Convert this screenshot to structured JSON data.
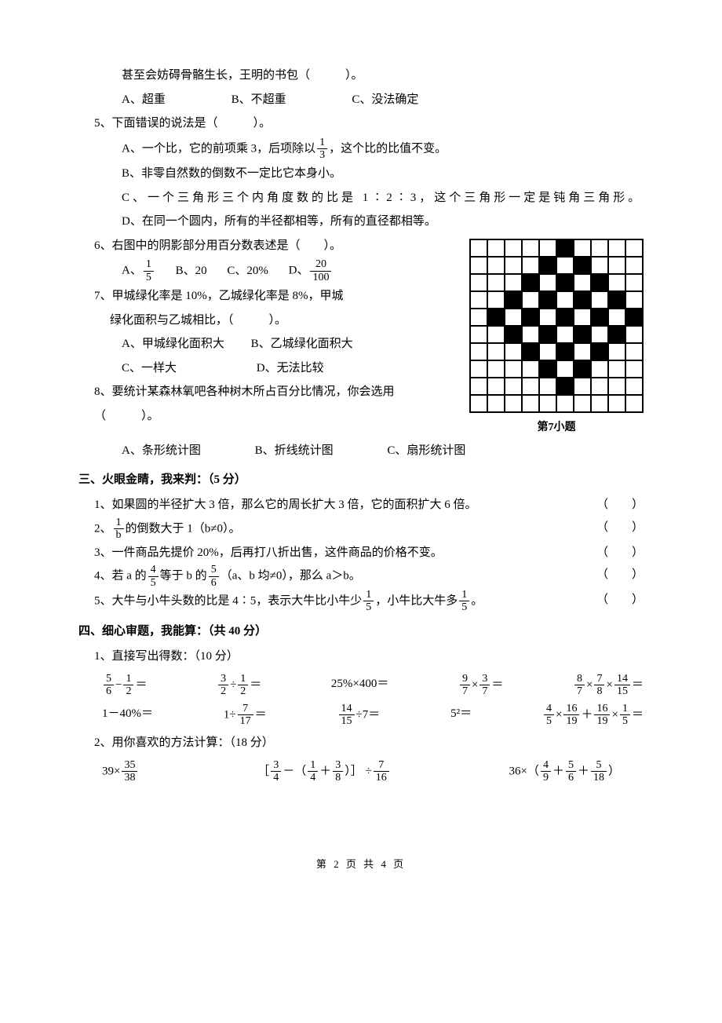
{
  "q4": {
    "stem": "甚至会妨碍骨骼生长，王明的书包（　　　）。",
    "a": "A、超重",
    "b": "B、不超重",
    "c": "C、没法确定"
  },
  "q5": {
    "stem": "5、下面错误的说法是（　　　）。",
    "a_pre": "A、一个比，它的前项乘 3，后项除以",
    "a_frac_num": "1",
    "a_frac_den": "3",
    "a_post": "，这个比的比值不变。",
    "b": "B、非零自然数的倒数不一定比它本身小。",
    "c": "C、一个三角形三个内角度数的比是 1∶2∶3，这个三角形一定是钝角三角形。",
    "d": "D、在同一个圆内，所有的半径都相等，所有的直径都相等。"
  },
  "q6": {
    "stem": "6、右图中的阴影部分用百分数表述是（　　）。",
    "a_label": "A、",
    "a_num": "1",
    "a_den": "5",
    "b": "B、20",
    "c": "C、20%",
    "d_label": "D、",
    "d_num": "20",
    "d_den": "100"
  },
  "q7": {
    "stem1": "7、甲城绿化率是 10%，乙城绿化率是 8%，甲城",
    "stem2": "绿化面积与乙城相比，（　　　）。",
    "a": "A、甲城绿化面积大",
    "b": "B、乙城绿化面积大",
    "c": "C、一样大",
    "d": "D、无法比较"
  },
  "q8": {
    "stem1": "8、要统计某森林氧吧各种树木所占百分比情况，你会选用",
    "stem2": "（　　　）。",
    "a": "A、条形统计图",
    "b": "B、折线统计图",
    "c": "C、扇形统计图"
  },
  "sec3": {
    "title": "三、火眼金睛，我来判：（5 分）",
    "q1": "1、如果圆的半径扩大 3 倍，那么它的周长扩大 3 倍，它的面积扩大 6 倍。",
    "q2_pre": "2、",
    "q2_num": "1",
    "q2_den": "b",
    "q2_post": "的倒数大于 1（b≠0）。",
    "q3": "3、一件商品先提价 20%，后再打八折出售，这件商品的价格不变。",
    "q4_pre": "4、若 a 的",
    "q4_n1": "4",
    "q4_d1": "5",
    "q4_mid": "等于 b 的",
    "q4_n2": "5",
    "q4_d2": "6",
    "q4_post": "（a、b 均≠0），那么 a＞b。",
    "q5_pre": "5、大牛与小牛头数的比是 4∶5，表示大牛比小牛少",
    "q5_n1": "1",
    "q5_d1": "5",
    "q5_mid": "，小牛比大牛多",
    "q5_n2": "1",
    "q5_d2": "5",
    "q5_post": "。",
    "paren": "（　　）"
  },
  "sec4": {
    "title": "四、细心审题，我能算：（共 40 分）",
    "sub1": "1、直接写出得数：（10 分）",
    "sub2": "2、用你喜欢的方法计算：（18 分）"
  },
  "calc1": {
    "e1_n1": "5",
    "e1_d1": "6",
    "e1_op": "−",
    "e1_n2": "1",
    "e1_d2": "2",
    "eq": "＝",
    "e2_n1": "3",
    "e2_d1": "2",
    "e2_op": "÷",
    "e2_n2": "1",
    "e2_d2": "2",
    "e3": "25%×400＝",
    "e4_n1": "9",
    "e4_d1": "7",
    "e4_op": "×",
    "e4_n2": "3",
    "e4_d2": "7",
    "e5_n1": "8",
    "e5_d1": "7",
    "e5_n2": "7",
    "e5_d2": "8",
    "e5_n3": "14",
    "e5_d3": "15"
  },
  "calc2": {
    "e1": "1－40%＝",
    "e2_pre": "1÷",
    "e2_n": "7",
    "e2_d": "17",
    "e3_n": "14",
    "e3_d": "15",
    "e3_post": "÷7＝",
    "e4": "5²＝",
    "e5_n1": "4",
    "e5_d1": "5",
    "e5_n2": "16",
    "e5_d2": "19",
    "e5_n3": "16",
    "e5_d3": "19",
    "e5_n4": "1",
    "e5_d4": "5"
  },
  "calc3": {
    "e1_pre": "39×",
    "e1_n": "35",
    "e1_d": "38",
    "e2_n1": "3",
    "e2_d1": "4",
    "e2_n2": "1",
    "e2_d2": "4",
    "e2_n3": "3",
    "e2_d3": "8",
    "e2_n4": "7",
    "e2_d4": "16",
    "e3_pre": "36×（",
    "e3_n1": "4",
    "e3_d1": "9",
    "e3_n2": "5",
    "e3_d2": "6",
    "e3_n3": "5",
    "e3_d3": "18",
    "e3_post": "）"
  },
  "footer": "第 2 页 共 4 页",
  "grid_caption": "第7小题",
  "grid_colors": {
    "black": "#000000",
    "white": "#ffffff",
    "border": "#000000"
  },
  "grid": [
    [
      0,
      0,
      0,
      0,
      0,
      1,
      0,
      0,
      0,
      0
    ],
    [
      0,
      0,
      0,
      0,
      1,
      0,
      1,
      0,
      0,
      0
    ],
    [
      0,
      0,
      0,
      1,
      0,
      1,
      0,
      1,
      0,
      0
    ],
    [
      0,
      0,
      1,
      0,
      1,
      0,
      1,
      0,
      1,
      0
    ],
    [
      0,
      1,
      0,
      1,
      0,
      1,
      0,
      1,
      0,
      1
    ],
    [
      0,
      0,
      1,
      0,
      1,
      0,
      1,
      0,
      1,
      0
    ],
    [
      0,
      0,
      0,
      1,
      0,
      1,
      0,
      1,
      0,
      0
    ],
    [
      0,
      0,
      0,
      0,
      1,
      0,
      1,
      0,
      0,
      0
    ],
    [
      0,
      0,
      0,
      0,
      0,
      1,
      0,
      0,
      0,
      0
    ],
    [
      0,
      0,
      0,
      0,
      0,
      0,
      0,
      0,
      0,
      0
    ]
  ]
}
